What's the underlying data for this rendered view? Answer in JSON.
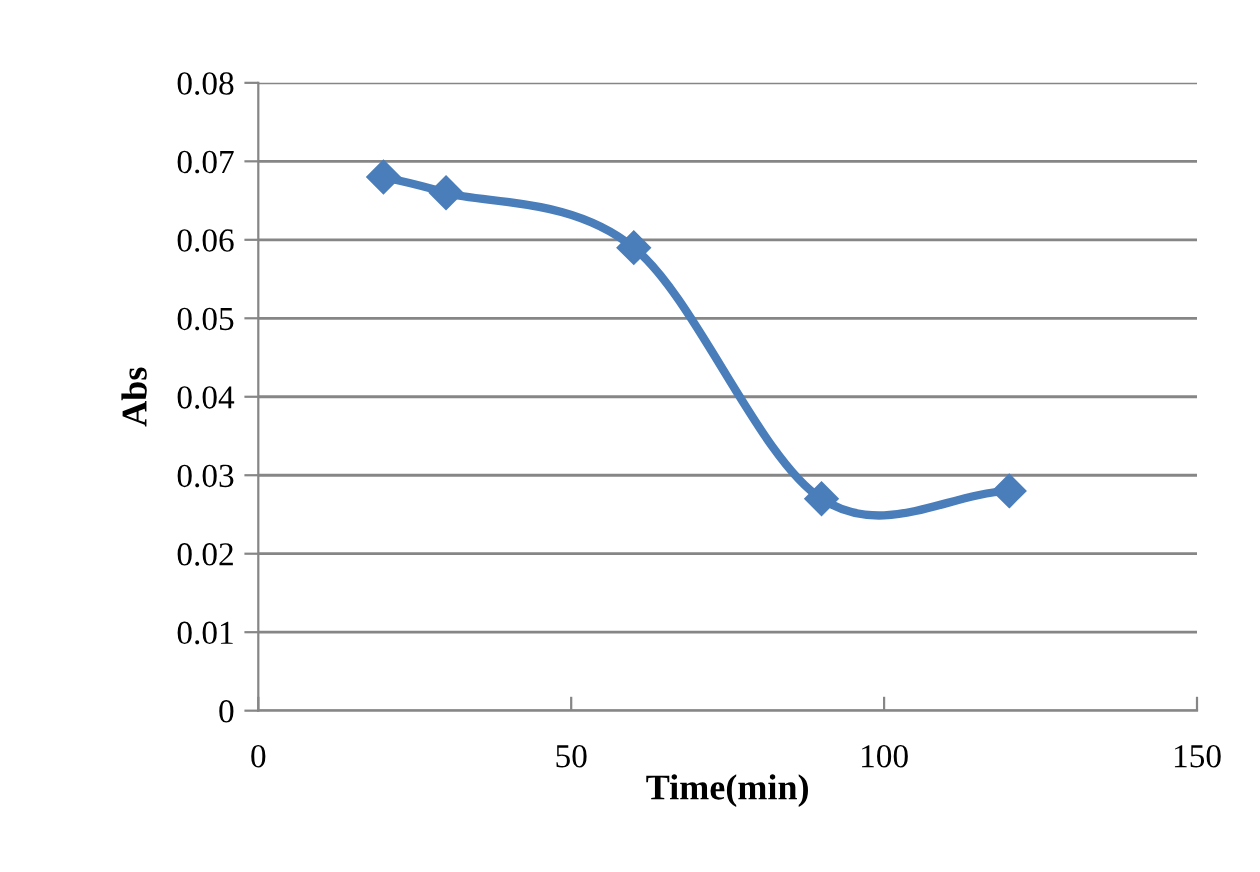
{
  "chart_data": {
    "type": "line",
    "xlabel": "Time(min)",
    "ylabel": "Abs",
    "x": [
      20,
      30,
      60,
      90,
      120
    ],
    "series": [
      {
        "color": "#4a7ebb",
        "values": [
          0.068,
          0.066,
          0.059,
          0.027,
          0.028
        ]
      }
    ],
    "xlim": [
      0,
      150
    ],
    "xticks": [
      0,
      50,
      100,
      150
    ],
    "ylim": [
      0,
      0.08
    ],
    "yticks": [
      {
        "value": 0,
        "label": "0"
      },
      {
        "value": 0.01,
        "label": "0.01"
      },
      {
        "value": 0.02,
        "label": "0.02"
      },
      {
        "value": 0.03,
        "label": "0.03"
      },
      {
        "value": 0.04,
        "label": "0.04"
      },
      {
        "value": 0.05,
        "label": "0.05"
      },
      {
        "value": 0.06,
        "label": "0.06"
      },
      {
        "value": 0.07,
        "label": "0.07"
      },
      {
        "value": 0.08,
        "label": "0.08"
      }
    ],
    "grid": "y",
    "marker": "diamond",
    "line_style": "solid"
  }
}
